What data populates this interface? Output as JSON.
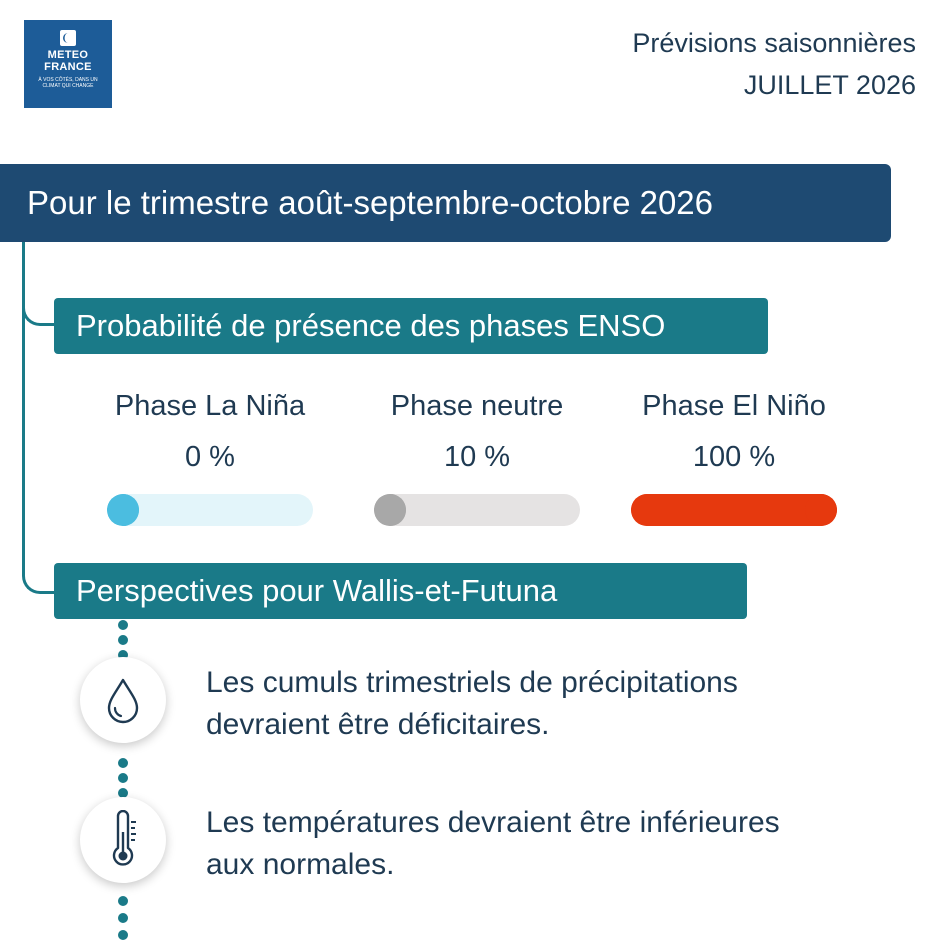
{
  "logo": {
    "name_line1": "METEO",
    "name_line2": "FRANCE",
    "tagline_line1": "À VOS CÔTÉS, DANS UN",
    "tagline_line2": "CLIMAT QUI CHANGE"
  },
  "header": {
    "subtitle": "Prévisions saisonnières",
    "month": "JUILLET 2026"
  },
  "banner": {
    "title": "Pour le trimestre août-septembre-octobre 2026"
  },
  "enso": {
    "title": "Probabilité de présence des phases ENSO",
    "phases": [
      {
        "label": "Phase La Niña",
        "value": "0 %",
        "probability": 0,
        "color": "#4bbde0",
        "track": "#e3f5fa"
      },
      {
        "label": "Phase neutre",
        "value": "10 %",
        "probability": 10,
        "color": "#a8a8a8",
        "track": "#e5e3e3"
      },
      {
        "label": "Phase El Niño",
        "value": "100 %",
        "probability": 100,
        "color": "#e6390e",
        "track": "#f6d3c9"
      }
    ]
  },
  "outlook": {
    "title": "Perspectives pour Wallis-et-Futuna",
    "items": [
      {
        "icon": "water-drop-icon",
        "line1": "Les cumuls trimestriels de précipitations",
        "line2": "devraient être déficitaires."
      },
      {
        "icon": "thermometer-icon",
        "line1": "Les températures devraient être inférieures",
        "line2": "aux normales."
      }
    ]
  },
  "colors": {
    "banner": "#1e4a72",
    "section": "#1a7a88",
    "logo": "#1d5c98"
  }
}
